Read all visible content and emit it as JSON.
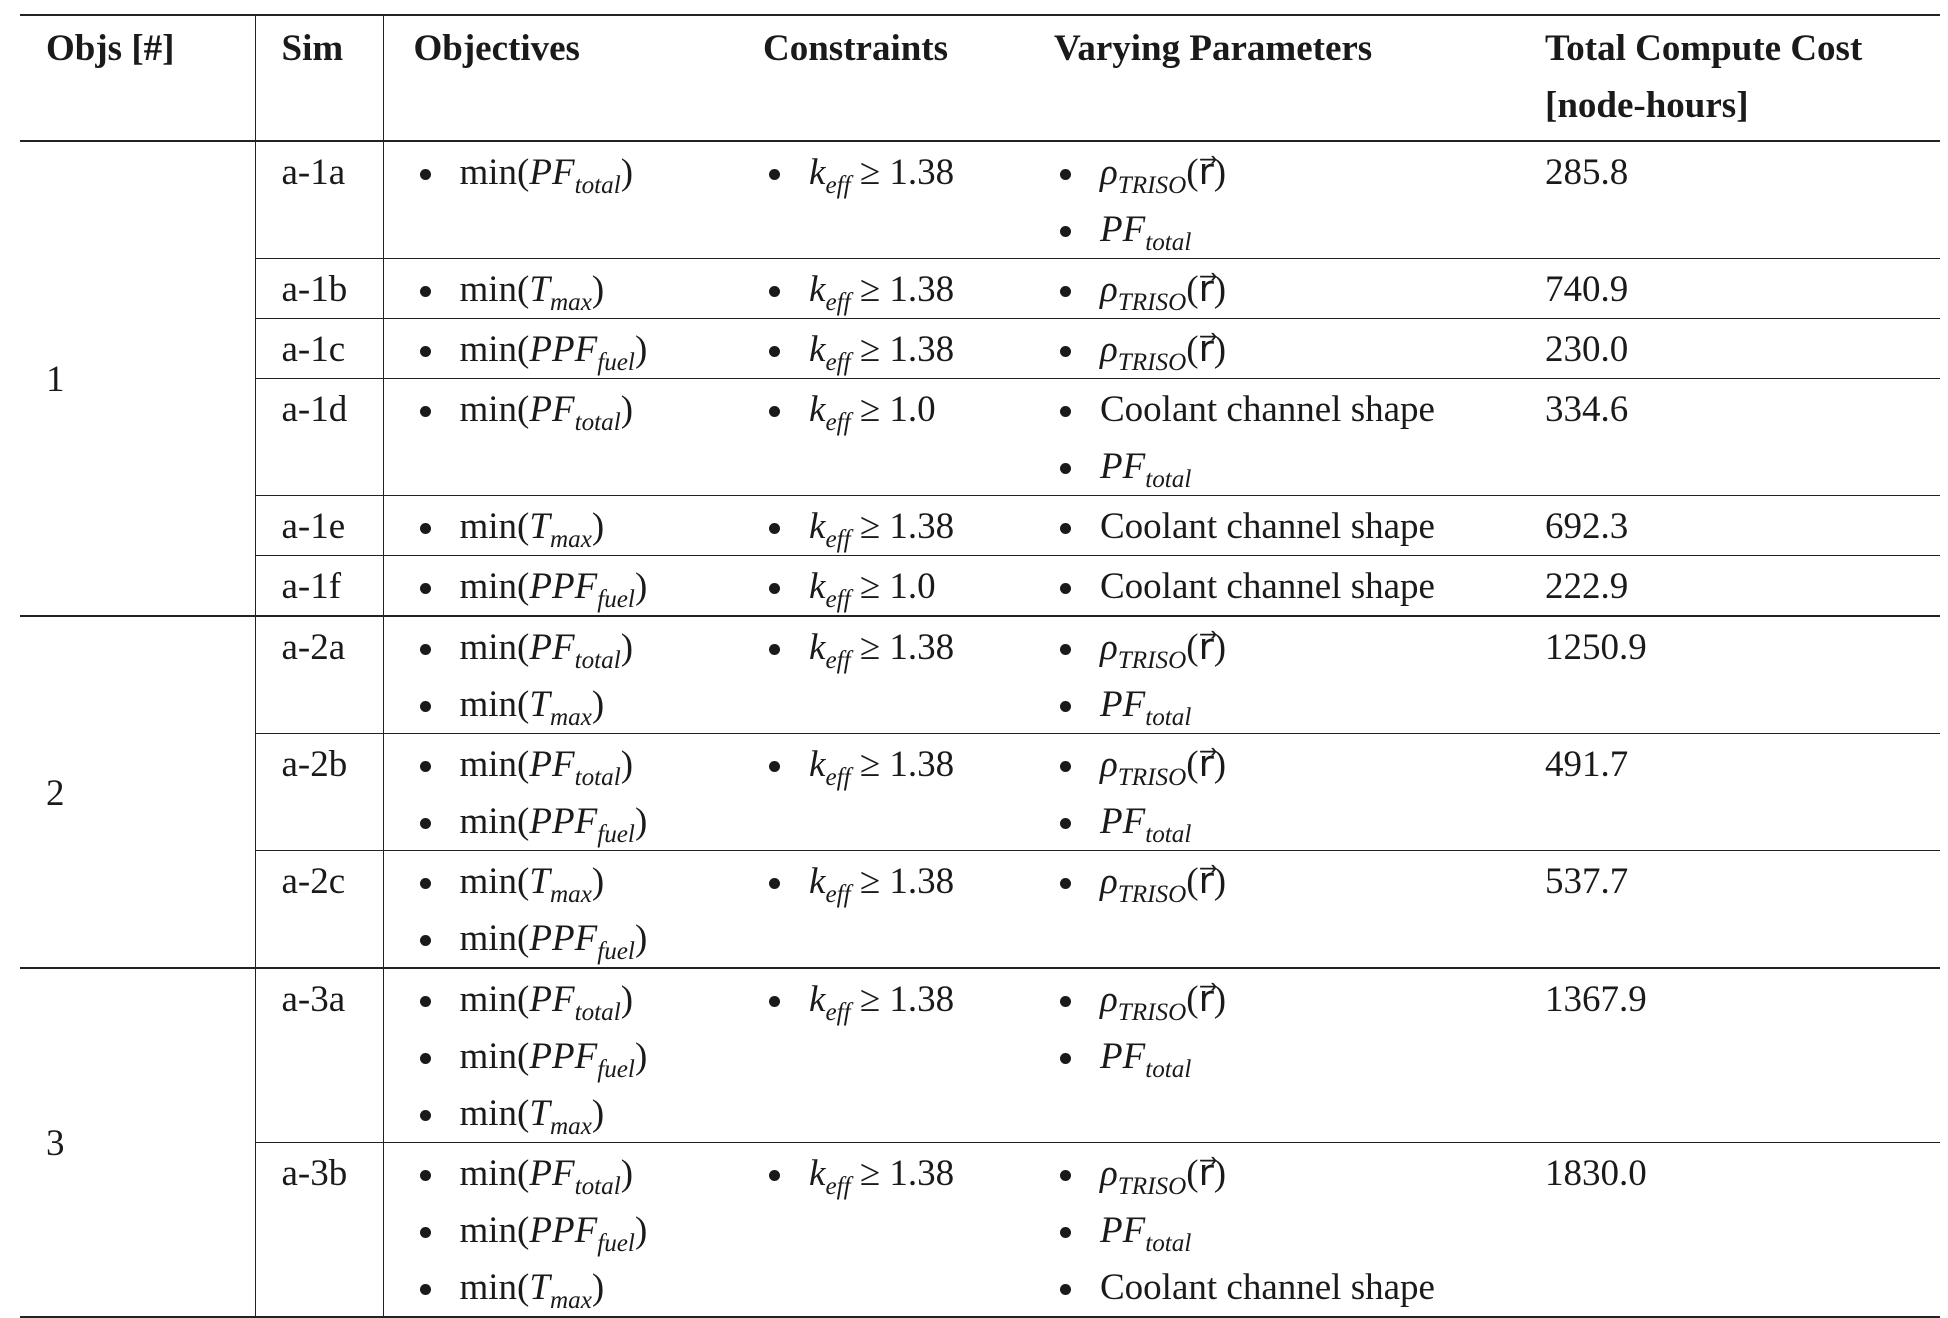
{
  "headers": {
    "objs": "Objs [#]",
    "sim": "Sim",
    "objectives": "Objectives",
    "constraints": "Constraints",
    "varying": "Varying Parameters",
    "cost": "Total Compute Cost [node-hours]"
  },
  "groups": [
    {
      "objs": "1",
      "rows": [
        {
          "sim": "a-1a",
          "objectives": [
            "min(PF_total)"
          ],
          "constraints": [
            "k_eff ≥ 1.38"
          ],
          "varying": [
            "ρ_TRISO(r⃗)",
            "PF_total"
          ],
          "cost": "285.8"
        },
        {
          "sim": "a-1b",
          "objectives": [
            "min(T_max)"
          ],
          "constraints": [
            "k_eff ≥ 1.38"
          ],
          "varying": [
            "ρ_TRISO(r⃗)"
          ],
          "cost": "740.9"
        },
        {
          "sim": "a-1c",
          "objectives": [
            "min(PPF_fuel)"
          ],
          "constraints": [
            "k_eff ≥ 1.38"
          ],
          "varying": [
            "ρ_TRISO(r⃗)"
          ],
          "cost": "230.0"
        },
        {
          "sim": "a-1d",
          "objectives": [
            "min(PF_total)"
          ],
          "constraints": [
            "k_eff ≥ 1.0"
          ],
          "varying": [
            "Coolant channel shape",
            "PF_total"
          ],
          "cost": "334.6"
        },
        {
          "sim": "a-1e",
          "objectives": [
            "min(T_max)"
          ],
          "constraints": [
            "k_eff ≥ 1.38"
          ],
          "varying": [
            "Coolant channel shape"
          ],
          "cost": "692.3"
        },
        {
          "sim": "a-1f",
          "objectives": [
            "min(PPF_fuel)"
          ],
          "constraints": [
            "k_eff ≥ 1.0"
          ],
          "varying": [
            "Coolant channel shape"
          ],
          "cost": "222.9"
        }
      ]
    },
    {
      "objs": "2",
      "rows": [
        {
          "sim": "a-2a",
          "objectives": [
            "min(PF_total)",
            "min(T_max)"
          ],
          "constraints": [
            "k_eff ≥ 1.38"
          ],
          "varying": [
            "ρ_TRISO(r⃗)",
            "PF_total"
          ],
          "cost": "1250.9"
        },
        {
          "sim": "a-2b",
          "objectives": [
            "min(PF_total)",
            "min(PPF_fuel)"
          ],
          "constraints": [
            "k_eff ≥ 1.38"
          ],
          "varying": [
            "ρ_TRISO(r⃗)",
            "PF_total"
          ],
          "cost": "491.7"
        },
        {
          "sim": "a-2c",
          "objectives": [
            "min(T_max)",
            "min(PPF_fuel)"
          ],
          "constraints": [
            "k_eff ≥ 1.38"
          ],
          "varying": [
            "ρ_TRISO(r⃗)"
          ],
          "cost": "537.7"
        }
      ]
    },
    {
      "objs": "3",
      "rows": [
        {
          "sim": "a-3a",
          "objectives": [
            "min(PF_total)",
            "min(PPF_fuel)",
            "min(T_max)"
          ],
          "constraints": [
            "k_eff ≥ 1.38"
          ],
          "varying": [
            "ρ_TRISO(r⃗)",
            "PF_total"
          ],
          "cost": "1367.9"
        },
        {
          "sim": "a-3b",
          "objectives": [
            "min(PF_total)",
            "min(PPF_fuel)",
            "min(T_max)"
          ],
          "constraints": [
            "k_eff ≥ 1.38"
          ],
          "varying": [
            "ρ_TRISO(r⃗)",
            "PF_total",
            "Coolant channel shape"
          ],
          "cost": "1830.0"
        }
      ]
    }
  ]
}
